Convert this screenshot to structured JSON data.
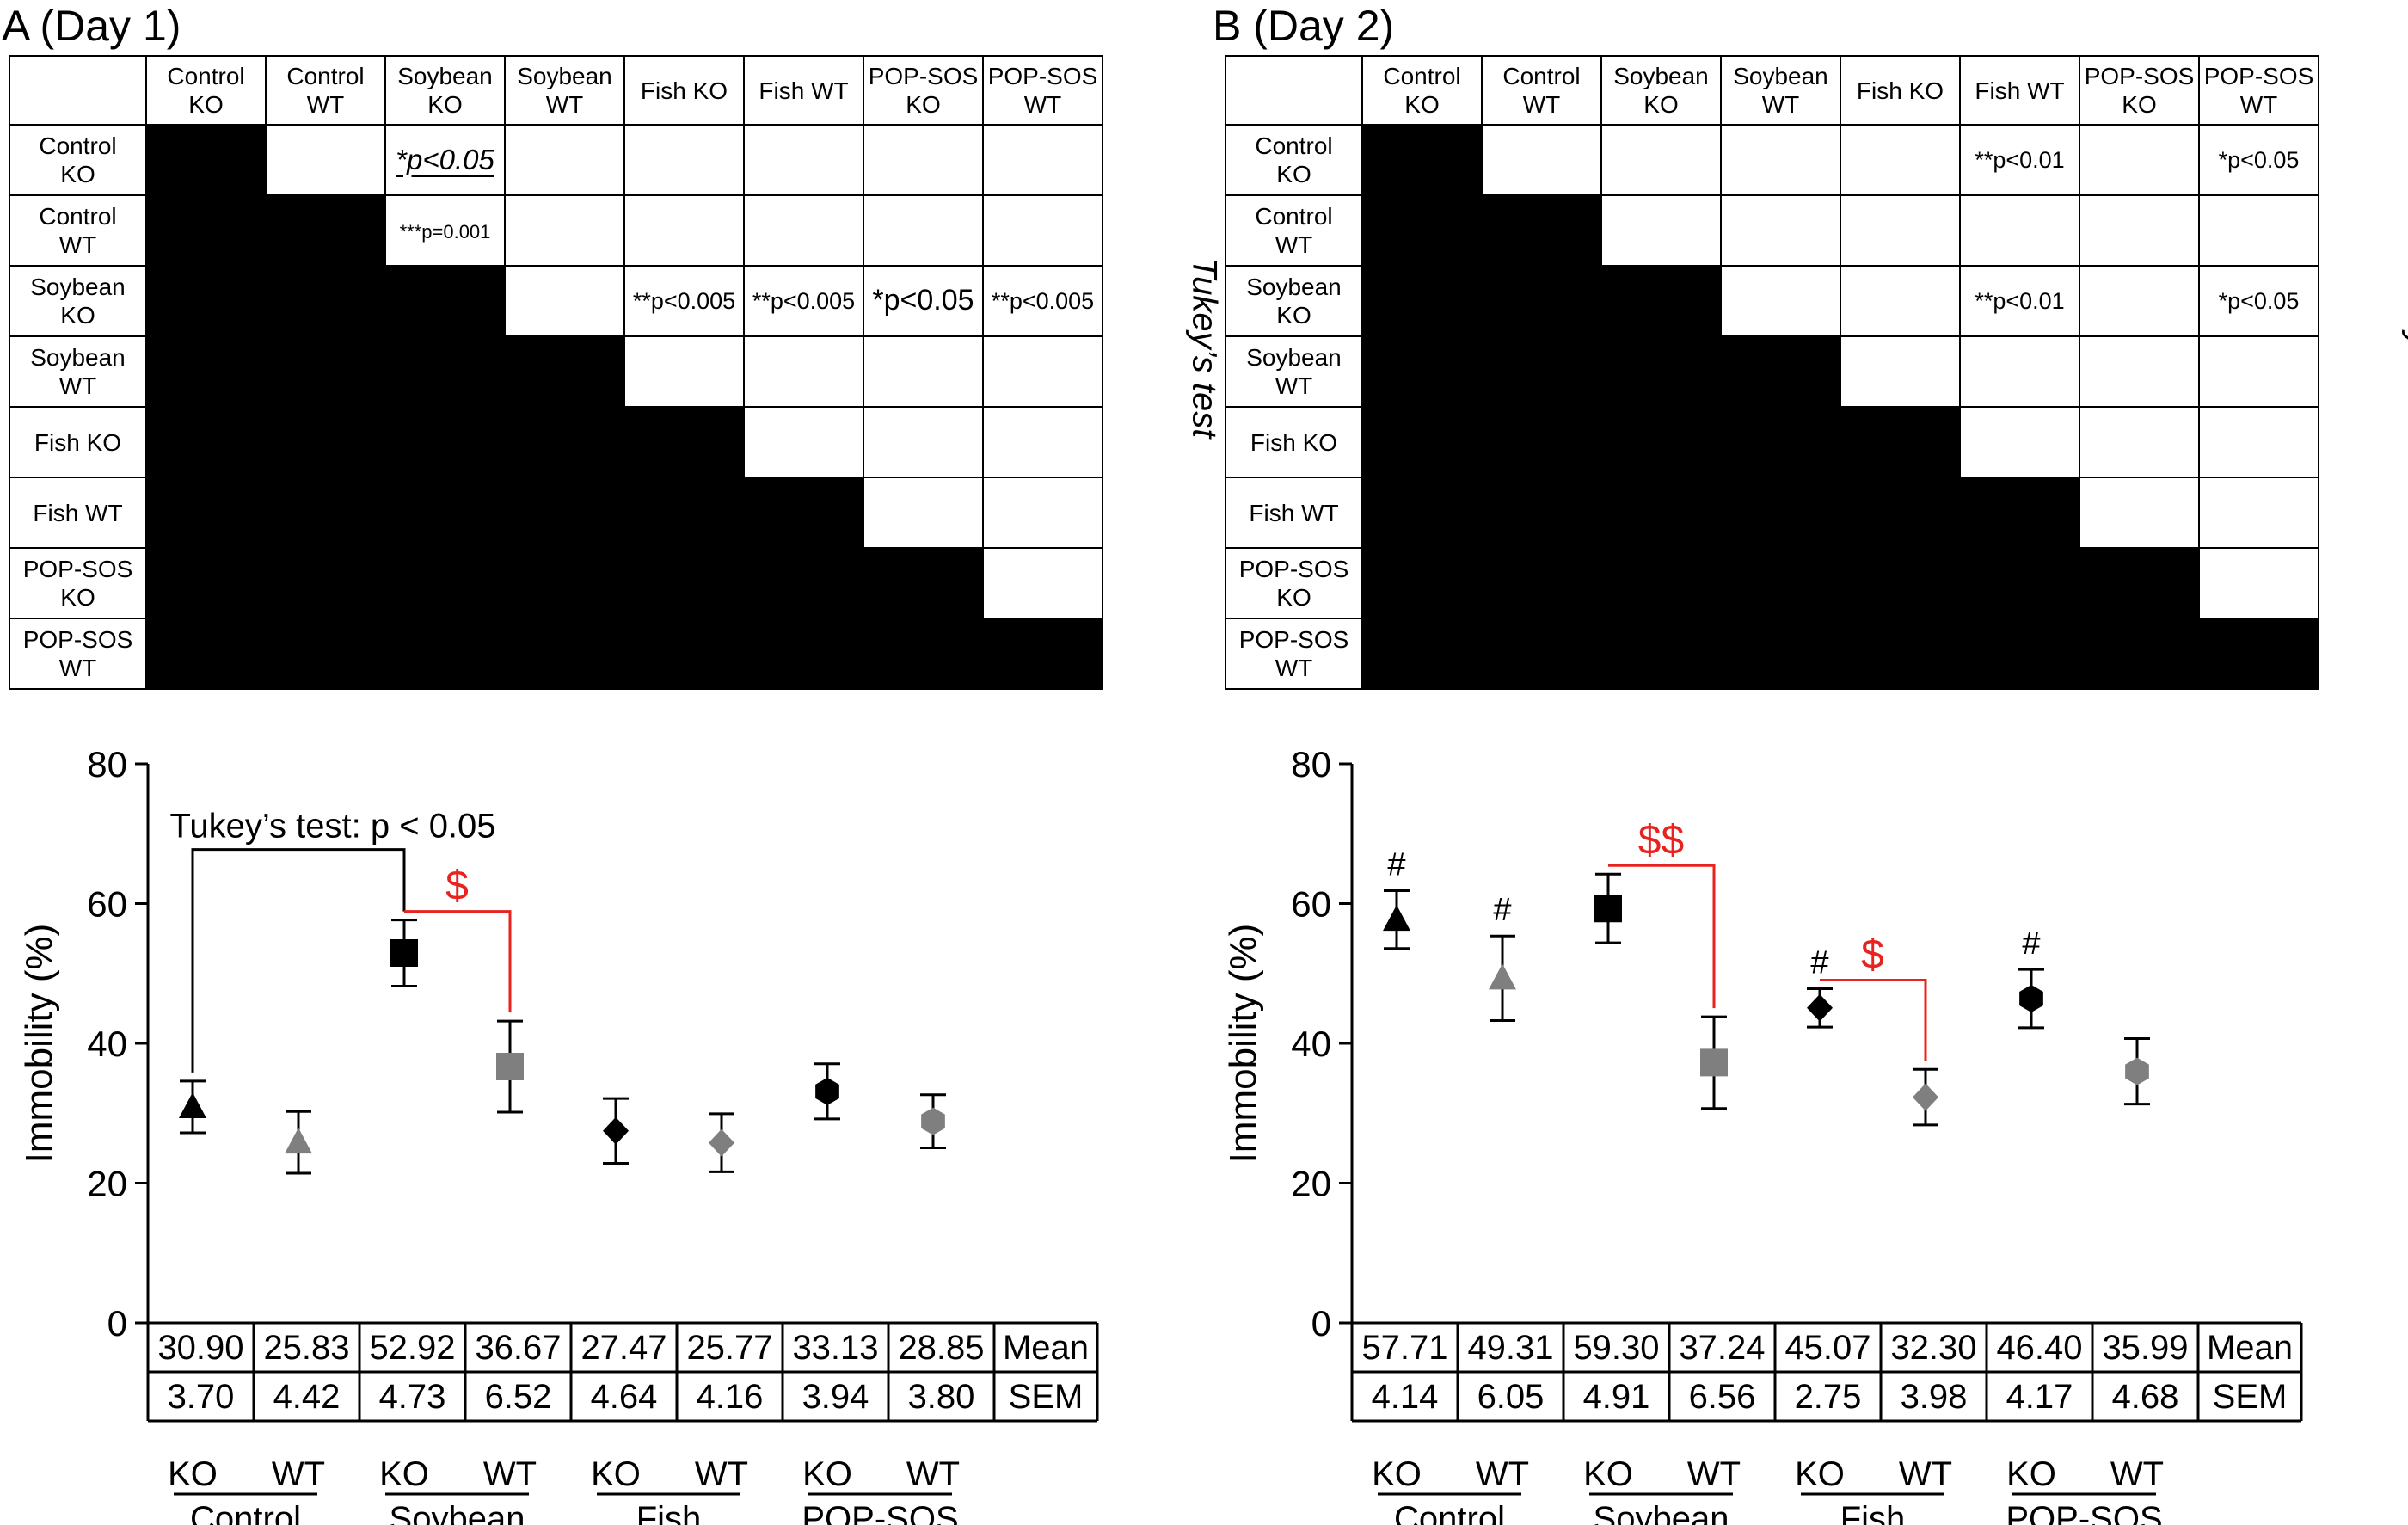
{
  "panel_a": {
    "title": "A (Day 1)",
    "side_label": "Tukey’s test",
    "col_headers": [
      [
        "Control",
        "KO"
      ],
      [
        "Control",
        "WT"
      ],
      [
        "Soybean",
        "KO"
      ],
      [
        "Soybean",
        "WT"
      ],
      [
        "Fish KO"
      ],
      [
        "Fish WT"
      ],
      [
        "POP-SOS",
        "KO"
      ],
      [
        "POP-SOS",
        "WT"
      ]
    ],
    "row_headers": [
      [
        "Control",
        "KO"
      ],
      [
        "Control",
        "WT"
      ],
      [
        "Soybean",
        "KO"
      ],
      [
        "Soybean",
        "WT"
      ],
      [
        "Fish KO"
      ],
      [
        "Fish WT"
      ],
      [
        "POP-SOS",
        "KO"
      ],
      [
        "POP-SOS",
        "WT"
      ]
    ],
    "pvalues": [
      {
        "row": 0,
        "col": 2,
        "text": "*p<0.05",
        "style": "pv-ital"
      },
      {
        "row": 1,
        "col": 2,
        "text": "***p=0.001",
        "style": "pv-small"
      },
      {
        "row": 2,
        "col": 4,
        "text": "**p<0.005",
        "style": "pv-med"
      },
      {
        "row": 2,
        "col": 5,
        "text": "**p<0.005",
        "style": "pv-med"
      },
      {
        "row": 2,
        "col": 6,
        "text": "*p<0.05",
        "style": "pv-large"
      },
      {
        "row": 2,
        "col": 7,
        "text": "**p<0.005",
        "style": "pv-med"
      }
    ]
  },
  "panel_b": {
    "title": "B (Day 2)",
    "side_label": "Tukey’s test",
    "col_headers": [
      [
        "Control",
        "KO"
      ],
      [
        "Control",
        "WT"
      ],
      [
        "Soybean",
        "KO"
      ],
      [
        "Soybean",
        "WT"
      ],
      [
        "Fish KO"
      ],
      [
        "Fish WT"
      ],
      [
        "POP-SOS",
        "KO"
      ],
      [
        "POP-SOS",
        "WT"
      ]
    ],
    "row_headers": [
      [
        "Control",
        "KO"
      ],
      [
        "Control",
        "WT"
      ],
      [
        "Soybean",
        "KO"
      ],
      [
        "Soybean",
        "WT"
      ],
      [
        "Fish KO"
      ],
      [
        "Fish WT"
      ],
      [
        "POP-SOS",
        "KO"
      ],
      [
        "POP-SOS",
        "WT"
      ]
    ],
    "pvalues": [
      {
        "row": 0,
        "col": 5,
        "text": "**p<0.01",
        "style": "pv-med"
      },
      {
        "row": 0,
        "col": 7,
        "text": "*p<0.05",
        "style": "pv-med"
      },
      {
        "row": 2,
        "col": 5,
        "text": "**p<0.01",
        "style": "pv-med"
      },
      {
        "row": 2,
        "col": 7,
        "text": "*p<0.05",
        "style": "pv-med"
      }
    ]
  },
  "colors": {
    "ko": "#000000",
    "wt": "#7f7f7f",
    "annotation_red": "#e8231f"
  },
  "chart_data": [
    {
      "type": "scatter",
      "ylabel": "Immobility (%)",
      "ylim": [
        0,
        80
      ],
      "yticks": [
        0,
        20,
        40,
        60,
        80
      ],
      "categories": [
        "KO",
        "WT",
        "KO",
        "WT",
        "KO",
        "WT",
        "KO",
        "WT"
      ],
      "groups": [
        "Control",
        "Soybean",
        "Fish",
        "POP-SOS"
      ],
      "markers": [
        "triangle",
        "triangle",
        "square",
        "square",
        "diamond",
        "diamond",
        "hexagon",
        "hexagon"
      ],
      "mean": [
        30.9,
        25.83,
        52.92,
        36.67,
        27.47,
        25.77,
        33.13,
        28.85
      ],
      "sem": [
        3.7,
        4.42,
        4.73,
        6.52,
        4.64,
        4.16,
        3.94,
        3.8
      ],
      "mean_display": [
        "30.90",
        "25.83",
        "52.92",
        "36.67",
        "27.47",
        "25.77",
        "33.13",
        "28.85"
      ],
      "sem_display": [
        "3.70",
        "4.42",
        "4.73",
        "6.52",
        "4.64",
        "4.16",
        "3.94",
        "3.80"
      ],
      "row_labels": [
        "Mean",
        "SEM"
      ],
      "hash_marks": [],
      "annotations": [
        {
          "from": 0,
          "to": 2,
          "label": "Tukey’s test: p < 0.05",
          "color": "black"
        },
        {
          "from": 2,
          "to": 3,
          "label": "$",
          "color": "red"
        }
      ]
    },
    {
      "type": "scatter",
      "ylabel": "Immobility (%)",
      "ylim": [
        0,
        80
      ],
      "yticks": [
        0,
        20,
        40,
        60,
        80
      ],
      "categories": [
        "KO",
        "WT",
        "KO",
        "WT",
        "KO",
        "WT",
        "KO",
        "WT"
      ],
      "groups": [
        "Control",
        "Soybean",
        "Fish",
        "POP-SOS"
      ],
      "markers": [
        "triangle",
        "triangle",
        "square",
        "square",
        "diamond",
        "diamond",
        "hexagon",
        "hexagon"
      ],
      "mean": [
        57.71,
        49.31,
        59.3,
        37.24,
        45.07,
        32.3,
        46.4,
        35.99
      ],
      "sem": [
        4.14,
        6.05,
        4.91,
        6.56,
        2.75,
        3.98,
        4.17,
        4.68
      ],
      "mean_display": [
        "57.71",
        "49.31",
        "59.30",
        "37.24",
        "45.07",
        "32.30",
        "46.40",
        "35.99"
      ],
      "sem_display": [
        "4.14",
        "6.05",
        "4.91",
        "6.56",
        "2.75",
        "3.98",
        "4.17",
        "4.68"
      ],
      "row_labels": [
        "Mean",
        "SEM"
      ],
      "hash_marks": [
        {
          "index": 0,
          "label": "#"
        },
        {
          "index": 1,
          "label": "#"
        },
        {
          "index": 4,
          "label": "#"
        },
        {
          "index": 6,
          "label": "#"
        }
      ],
      "annotations": [
        {
          "from": 2,
          "to": 3,
          "label": "$$",
          "color": "red"
        },
        {
          "from": 4,
          "to": 5,
          "label": "$",
          "color": "red"
        }
      ]
    }
  ]
}
